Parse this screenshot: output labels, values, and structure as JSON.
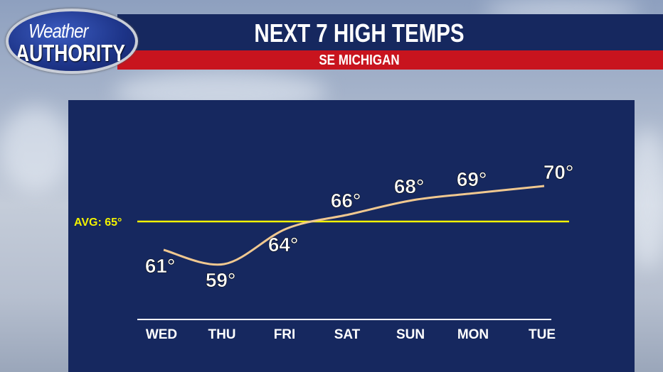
{
  "logo": {
    "line1": "Weather",
    "line2": "AUTHORITY"
  },
  "header": {
    "title": "NEXT 7 HIGH TEMPS",
    "subtitle": "SE MICHIGAN"
  },
  "colors": {
    "panel": "#16285f",
    "header_red": "#c8141e",
    "avg_line": "#f2f200",
    "trend_line": "#f0c890"
  },
  "chart_data": {
    "type": "line",
    "title": "NEXT 7 HIGH TEMPS",
    "subtitle": "SE MICHIGAN",
    "categories": [
      "WED",
      "THU",
      "FRI",
      "SAT",
      "SUN",
      "MON",
      "TUE"
    ],
    "values": [
      61,
      59,
      64,
      66,
      68,
      69,
      70
    ],
    "data_labels": [
      "61°",
      "59°",
      "64°",
      "66°",
      "68°",
      "69°",
      "70°"
    ],
    "reference_line": {
      "label": "AVG: 65°",
      "value": 65
    },
    "unit": "°F",
    "grid": false
  }
}
